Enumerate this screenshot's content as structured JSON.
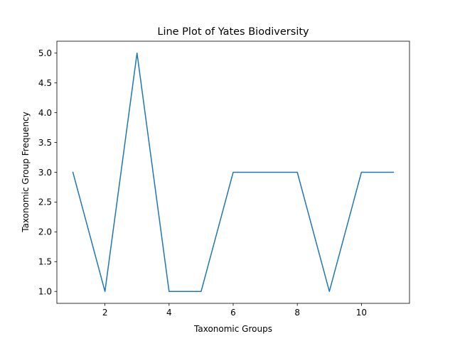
{
  "chart_data": {
    "type": "line",
    "title": "Line Plot of Yates Biodiversity",
    "xlabel": "Taxonomic Groups",
    "ylabel": "Taxonomic Group Frequency",
    "x": [
      1,
      2,
      3,
      4,
      5,
      6,
      7,
      8,
      9,
      10,
      11
    ],
    "series": [
      {
        "values": [
          3,
          1,
          5,
          1,
          1,
          3,
          3,
          3,
          1,
          3,
          3
        ],
        "color": "#1f77b4"
      }
    ],
    "xlim": [
      0.5,
      11.5
    ],
    "ylim": [
      0.8,
      5.2
    ],
    "x_ticks": [
      2,
      4,
      6,
      8,
      10
    ],
    "x_tick_labels": [
      "2",
      "4",
      "6",
      "8",
      "10"
    ],
    "y_ticks": [
      1.0,
      1.5,
      2.0,
      2.5,
      3.0,
      3.5,
      4.0,
      4.5,
      5.0
    ],
    "y_tick_labels": [
      "1.0",
      "1.5",
      "2.0",
      "2.5",
      "3.0",
      "3.5",
      "4.0",
      "4.5",
      "5.0"
    ],
    "grid": false,
    "legend": "none"
  }
}
